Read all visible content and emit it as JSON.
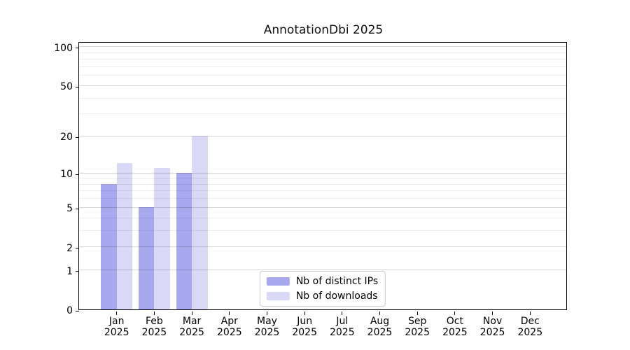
{
  "title": "AnnotationDbi 2025",
  "chart_data": {
    "type": "bar",
    "title": "AnnotationDbi 2025",
    "categories": [
      "Jan",
      "Feb",
      "Mar",
      "Apr",
      "May",
      "Jun",
      "Jul",
      "Aug",
      "Sep",
      "Oct",
      "Nov",
      "Dec"
    ],
    "year_label": "2025",
    "series": [
      {
        "name": "Nb of distinct IPs",
        "color": "#a8a8ef",
        "values": [
          8,
          5,
          10,
          0,
          0,
          0,
          0,
          0,
          0,
          0,
          0,
          0
        ]
      },
      {
        "name": "Nb of downloads",
        "color": "#d9d9f7",
        "values": [
          12,
          11,
          20,
          0,
          0,
          0,
          0,
          0,
          0,
          0,
          0,
          0
        ]
      }
    ],
    "xlabel": "",
    "ylabel": "",
    "yscale": "log10(1+x)",
    "ylim": [
      0,
      110
    ],
    "yticks": [
      0,
      1,
      2,
      5,
      10,
      20,
      50,
      100
    ],
    "minor_gridlines": [
      3,
      4,
      6,
      7,
      8,
      9,
      30,
      40,
      60,
      70,
      80,
      90
    ],
    "grid": true,
    "grid_above_bars": true,
    "legend_position": "lower center",
    "background_color": "#ffffff",
    "spine_color": "#000000"
  }
}
